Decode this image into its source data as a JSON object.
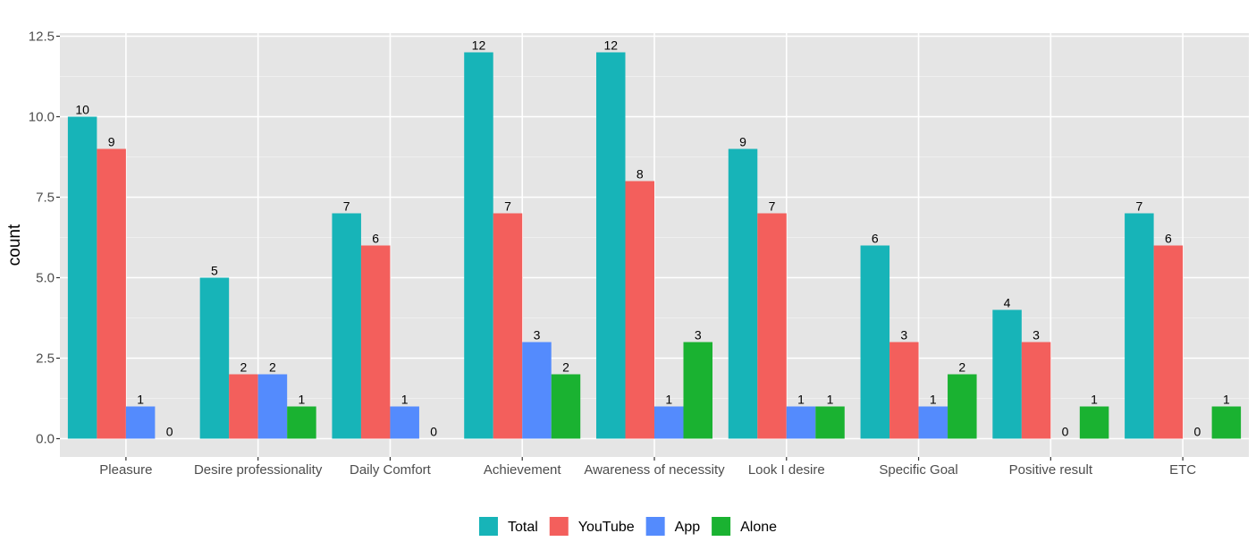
{
  "chart_data": {
    "type": "bar",
    "title": "",
    "xlabel": "",
    "ylabel": "count",
    "ylim": [
      -0.55,
      12.6
    ],
    "yticks": [
      0.0,
      2.5,
      5.0,
      7.5,
      10.0,
      12.5
    ],
    "ytick_labels": [
      "0.0",
      "2.5",
      "5.0",
      "7.5",
      "10.0",
      "12.5"
    ],
    "grid": true,
    "legend_position": "bottom",
    "categories": [
      "Pleasure",
      "Desire professionality",
      "Daily Comfort",
      "Achievement",
      "Awareness of necessity",
      "Look I desire",
      "Specific Goal",
      "Positive result",
      "ETC"
    ],
    "series": [
      {
        "name": "Total",
        "color": "#17b4b8",
        "values": [
          10,
          5,
          7,
          12,
          12,
          9,
          6,
          4,
          7
        ]
      },
      {
        "name": "YouTube",
        "color": "#f35f5c",
        "values": [
          9,
          2,
          6,
          7,
          8,
          7,
          3,
          3,
          6
        ]
      },
      {
        "name": "App",
        "color": "#548bfd",
        "values": [
          1,
          2,
          1,
          3,
          1,
          1,
          1,
          0,
          0
        ]
      },
      {
        "name": "Alone",
        "color": "#1ab231",
        "values": [
          0,
          1,
          0,
          2,
          3,
          1,
          2,
          1,
          1
        ]
      }
    ],
    "data_labels": [
      [
        "10",
        "5",
        "7",
        "12",
        "12",
        "9",
        "6",
        "4",
        "7"
      ],
      [
        "9",
        "2",
        "6",
        "7",
        "8",
        "7",
        "3",
        "3",
        "6"
      ],
      [
        "1",
        "2",
        "1",
        "3",
        "1",
        "1",
        "1",
        "0",
        "0"
      ],
      [
        "0",
        "1",
        "0",
        "2",
        "3",
        "1",
        "2",
        "1",
        "1"
      ]
    ]
  }
}
